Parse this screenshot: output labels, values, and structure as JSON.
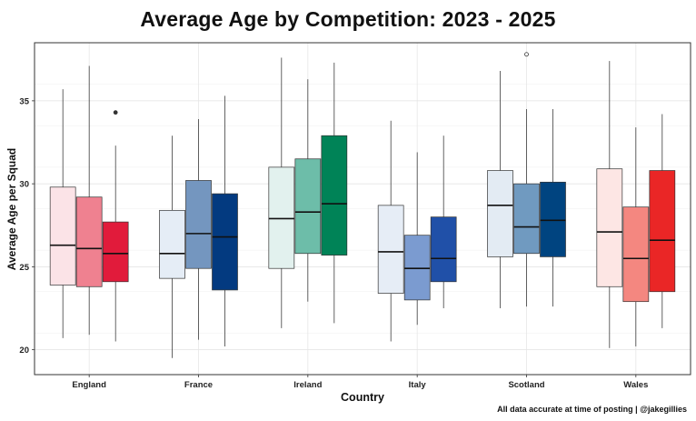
{
  "chart_data": {
    "type": "boxplot",
    "title": "Average Age by Competition: 2023 - 2025",
    "xlabel": "Country",
    "ylabel": "Average Age per Squad",
    "caption": "All data accurate at time of posting | @jakegillies",
    "ylim": [
      18.5,
      38.5
    ],
    "yticks": [
      20,
      25,
      30,
      35
    ],
    "grid": true,
    "legend": "none",
    "categories": [
      "England",
      "France",
      "Ireland",
      "Italy",
      "Scotland",
      "Wales"
    ],
    "groups": [
      {
        "category": "England",
        "boxes": [
          {
            "min": 20.7,
            "q1": 23.9,
            "median": 26.3,
            "q3": 29.8,
            "max": 35.7,
            "outliers": [],
            "color": "#fbe3e7"
          },
          {
            "min": 20.9,
            "q1": 23.8,
            "median": 26.1,
            "q3": 29.2,
            "max": 37.1,
            "outliers": [],
            "color": "#ef8190"
          },
          {
            "min": 20.5,
            "q1": 24.1,
            "median": 25.8,
            "q3": 27.7,
            "max": 32.3,
            "outliers": [
              34.3
            ],
            "color": "#e11b3b"
          }
        ]
      },
      {
        "category": "France",
        "boxes": [
          {
            "min": 19.5,
            "q1": 24.3,
            "median": 25.8,
            "q3": 28.4,
            "max": 32.9,
            "outliers": [],
            "color": "#e5edf6"
          },
          {
            "min": 20.6,
            "q1": 24.9,
            "median": 27.0,
            "q3": 30.2,
            "max": 33.9,
            "outliers": [],
            "color": "#7496bf"
          },
          {
            "min": 20.2,
            "q1": 23.6,
            "median": 26.8,
            "q3": 29.4,
            "max": 35.3,
            "outliers": [],
            "color": "#033a80"
          }
        ]
      },
      {
        "category": "Ireland",
        "boxes": [
          {
            "min": 21.3,
            "q1": 24.9,
            "median": 27.9,
            "q3": 31.0,
            "max": 37.6,
            "outliers": [],
            "color": "#e2f1ee"
          },
          {
            "min": 22.9,
            "q1": 25.8,
            "median": 28.3,
            "q3": 31.5,
            "max": 36.3,
            "outliers": [],
            "color": "#6dbda9"
          },
          {
            "min": 21.6,
            "q1": 25.7,
            "median": 28.8,
            "q3": 32.9,
            "max": 37.3,
            "outliers": [],
            "color": "#008357"
          }
        ]
      },
      {
        "category": "Italy",
        "boxes": [
          {
            "min": 20.5,
            "q1": 23.4,
            "median": 25.9,
            "q3": 28.7,
            "max": 33.8,
            "outliers": [],
            "color": "#e6edf6"
          },
          {
            "min": 21.5,
            "q1": 23.0,
            "median": 24.9,
            "q3": 26.9,
            "max": 31.9,
            "outliers": [],
            "color": "#7b9bd0"
          },
          {
            "min": 22.5,
            "q1": 24.1,
            "median": 25.5,
            "q3": 28.0,
            "max": 32.9,
            "outliers": [],
            "color": "#2050a8"
          }
        ]
      },
      {
        "category": "Scotland",
        "boxes": [
          {
            "min": 22.5,
            "q1": 25.6,
            "median": 28.7,
            "q3": 30.8,
            "max": 36.8,
            "outliers": [],
            "color": "#e3ebf3"
          },
          {
            "min": 22.6,
            "q1": 25.8,
            "median": 27.4,
            "q3": 30.0,
            "max": 34.5,
            "outliers": [
              37.8
            ],
            "color": "#709ac0"
          },
          {
            "min": 22.6,
            "q1": 25.6,
            "median": 27.8,
            "q3": 30.1,
            "max": 34.5,
            "outliers": [],
            "color": "#004480"
          }
        ]
      },
      {
        "category": "Wales",
        "boxes": [
          {
            "min": 20.1,
            "q1": 23.8,
            "median": 27.1,
            "q3": 30.9,
            "max": 37.4,
            "outliers": [],
            "color": "#fde6e4"
          },
          {
            "min": 20.2,
            "q1": 22.9,
            "median": 25.5,
            "q3": 28.6,
            "max": 33.4,
            "outliers": [],
            "color": "#f48780"
          },
          {
            "min": 21.3,
            "q1": 23.5,
            "median": 26.6,
            "q3": 30.8,
            "max": 34.2,
            "outliers": [],
            "color": "#ea2626"
          }
        ]
      }
    ]
  }
}
